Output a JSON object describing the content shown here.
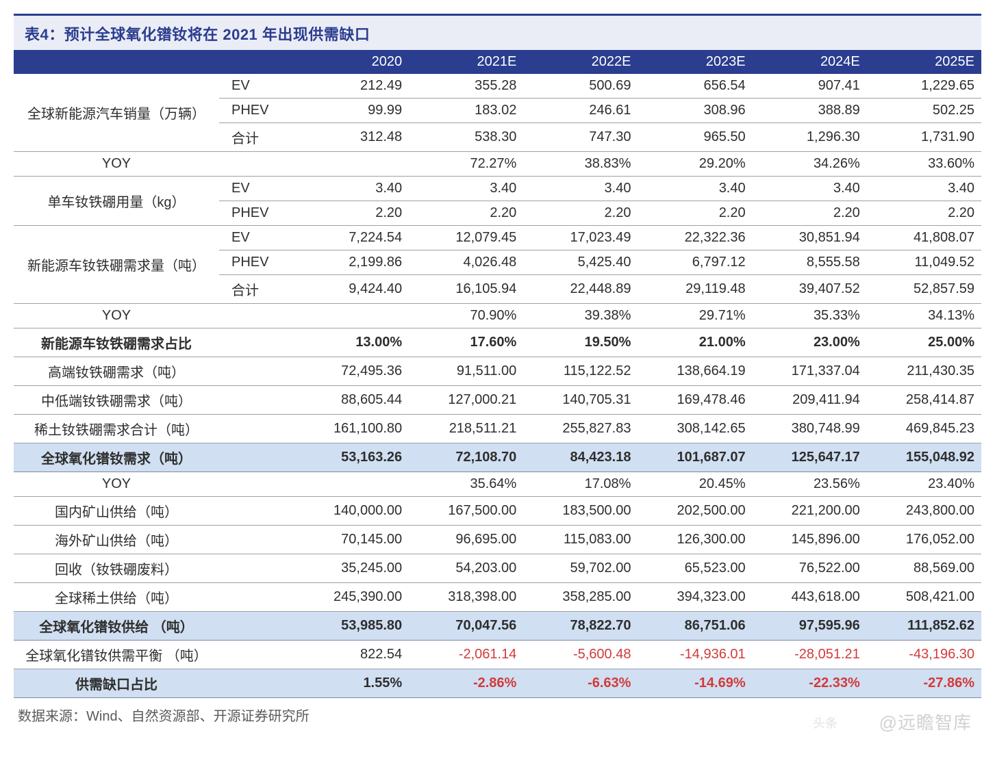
{
  "title": "表4：预计全球氧化镨钕将在 2021 年出现供需缺口",
  "source": "数据来源：Wind、自然资源部、开源证券研究所",
  "watermark_small": "头条",
  "watermark": "@远瞻智库",
  "colors": {
    "header_bg": "#2a3d8f",
    "header_text": "#ffffff",
    "title_bar_bg": "#ebedf6",
    "title_text": "#2a3d8f",
    "border": "#9aa0aa",
    "highlight_bg": "#d0dff1",
    "neg_text": "#d23a3a",
    "body_text": "#2e2e2e",
    "source_text": "#5a5a5a"
  },
  "years": [
    "2020",
    "2021E",
    "2022E",
    "2023E",
    "2024E",
    "2025E"
  ],
  "groups": [
    {
      "label": "全球新能源汽车销量（万辆）",
      "rows": [
        {
          "sub": "EV",
          "vals": [
            "212.49",
            "355.28",
            "500.69",
            "656.54",
            "907.41",
            "1,229.65"
          ]
        },
        {
          "sub": "PHEV",
          "vals": [
            "99.99",
            "183.02",
            "246.61",
            "308.96",
            "388.89",
            "502.25"
          ]
        },
        {
          "sub": "合计",
          "vals": [
            "312.48",
            "538.30",
            "747.30",
            "965.50",
            "1,296.30",
            "1,731.90"
          ]
        }
      ]
    },
    {
      "label": "YOY",
      "rows": [
        {
          "sub": "",
          "vals": [
            "",
            "72.27%",
            "38.83%",
            "29.20%",
            "34.26%",
            "33.60%"
          ]
        }
      ]
    },
    {
      "label": "单车钕铁硼用量（kg）",
      "rows": [
        {
          "sub": "EV",
          "vals": [
            "3.40",
            "3.40",
            "3.40",
            "3.40",
            "3.40",
            "3.40"
          ]
        },
        {
          "sub": "PHEV",
          "vals": [
            "2.20",
            "2.20",
            "2.20",
            "2.20",
            "2.20",
            "2.20"
          ]
        }
      ]
    },
    {
      "label": "新能源车钕铁硼需求量（吨）",
      "rows": [
        {
          "sub": "EV",
          "vals": [
            "7,224.54",
            "12,079.45",
            "17,023.49",
            "22,322.36",
            "30,851.94",
            "41,808.07"
          ]
        },
        {
          "sub": "PHEV",
          "vals": [
            "2,199.86",
            "4,026.48",
            "5,425.40",
            "6,797.12",
            "8,555.58",
            "11,049.52"
          ]
        },
        {
          "sub": "合计",
          "vals": [
            "9,424.40",
            "16,105.94",
            "22,448.89",
            "29,119.48",
            "39,407.52",
            "52,857.59"
          ]
        }
      ]
    },
    {
      "label": "YOY",
      "rows": [
        {
          "sub": "",
          "vals": [
            "",
            "70.90%",
            "39.38%",
            "29.71%",
            "35.33%",
            "34.13%"
          ]
        }
      ]
    },
    {
      "label": "新能源车钕铁硼需求占比",
      "bold": true,
      "rows": [
        {
          "sub": "",
          "vals": [
            "13.00%",
            "17.60%",
            "19.50%",
            "21.00%",
            "23.00%",
            "25.00%"
          ]
        }
      ]
    },
    {
      "label": "高端钕铁硼需求（吨）",
      "rows": [
        {
          "sub": "",
          "vals": [
            "72,495.36",
            "91,511.00",
            "115,122.52",
            "138,664.19",
            "171,337.04",
            "211,430.35"
          ]
        }
      ]
    },
    {
      "label": "中低端钕铁硼需求（吨）",
      "rows": [
        {
          "sub": "",
          "vals": [
            "88,605.44",
            "127,000.21",
            "140,705.31",
            "169,478.46",
            "209,411.94",
            "258,414.87"
          ]
        }
      ]
    },
    {
      "label": "稀土钕铁硼需求合计（吨）",
      "rows": [
        {
          "sub": "",
          "vals": [
            "161,100.80",
            "218,511.21",
            "255,827.83",
            "308,142.65",
            "380,748.99",
            "469,845.23"
          ]
        }
      ]
    },
    {
      "label": "全球氧化镨钕需求（吨）",
      "hl": true,
      "bold": true,
      "rows": [
        {
          "sub": "",
          "vals": [
            "53,163.26",
            "72,108.70",
            "84,423.18",
            "101,687.07",
            "125,647.17",
            "155,048.92"
          ]
        }
      ]
    },
    {
      "label": "YOY",
      "rows": [
        {
          "sub": "",
          "vals": [
            "",
            "35.64%",
            "17.08%",
            "20.45%",
            "23.56%",
            "23.40%"
          ]
        }
      ]
    },
    {
      "label": "国内矿山供给（吨）",
      "rows": [
        {
          "sub": "",
          "vals": [
            "140,000.00",
            "167,500.00",
            "183,500.00",
            "202,500.00",
            "221,200.00",
            "243,800.00"
          ]
        }
      ]
    },
    {
      "label": "海外矿山供给（吨）",
      "rows": [
        {
          "sub": "",
          "vals": [
            "70,145.00",
            "96,695.00",
            "115,083.00",
            "126,300.00",
            "145,896.00",
            "176,052.00"
          ]
        }
      ]
    },
    {
      "label": "回收（钕铁硼废料）",
      "rows": [
        {
          "sub": "",
          "vals": [
            "35,245.00",
            "54,203.00",
            "59,702.00",
            "65,523.00",
            "76,522.00",
            "88,569.00"
          ]
        }
      ]
    },
    {
      "label": "全球稀土供给（吨）",
      "rows": [
        {
          "sub": "",
          "vals": [
            "245,390.00",
            "318,398.00",
            "358,285.00",
            "394,323.00",
            "443,618.00",
            "508,421.00"
          ]
        }
      ]
    },
    {
      "label": "全球氧化镨钕供给 （吨）",
      "hl": true,
      "bold": true,
      "rows": [
        {
          "sub": "",
          "vals": [
            "53,985.80",
            "70,047.56",
            "78,822.70",
            "86,751.06",
            "97,595.96",
            "111,852.62"
          ]
        }
      ]
    },
    {
      "label": "全球氧化镨钕供需平衡 （吨）",
      "rows": [
        {
          "sub": "",
          "vals": [
            "822.54",
            "-2,061.14",
            "-5,600.48",
            "-14,936.01",
            "-28,051.21",
            "-43,196.30"
          ]
        }
      ]
    },
    {
      "label": "供需缺口占比",
      "hl": true,
      "bold": true,
      "rows": [
        {
          "sub": "",
          "vals": [
            "1.55%",
            "-2.86%",
            "-6.63%",
            "-14.69%",
            "-22.33%",
            "-27.86%"
          ],
          "neg_from": 1
        }
      ]
    }
  ]
}
